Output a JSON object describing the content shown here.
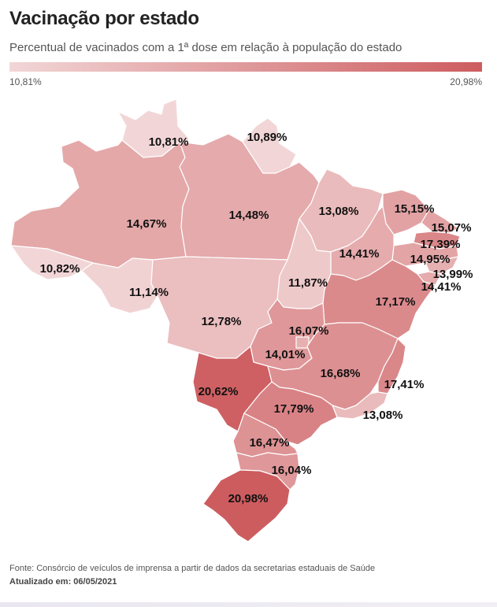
{
  "header": {
    "title": "Vacinação por estado",
    "subtitle": "Percentual de vacinados com a 1ª dose em relação à população do estado"
  },
  "legend": {
    "min_label": "10,81%",
    "max_label": "20,98%",
    "min_value": 10.81,
    "max_value": 20.98,
    "color_low": "#f2d6d7",
    "color_high": "#cd5c5f"
  },
  "map_data": {
    "type": "choropleth",
    "unit": "%",
    "regions": [
      {
        "id": "AM",
        "value": 14.67,
        "label": "14,67%"
      },
      {
        "id": "RR",
        "value": 10.81,
        "label": "10,81%"
      },
      {
        "id": "AP",
        "value": 10.89,
        "label": "10,89%"
      },
      {
        "id": "PA",
        "value": 14.48,
        "label": "14,48%"
      },
      {
        "id": "AC",
        "value": 10.82,
        "label": "10,82%"
      },
      {
        "id": "RO",
        "value": 11.14,
        "label": "11,14%"
      },
      {
        "id": "MA",
        "value": 13.08,
        "label": "13,08%"
      },
      {
        "id": "CE",
        "value": 15.15,
        "label": "15,15%"
      },
      {
        "id": "RN",
        "value": 15.07,
        "label": "15,07%"
      },
      {
        "id": "PB",
        "value": 17.39,
        "label": "17,39%"
      },
      {
        "id": "PE",
        "value": 14.95,
        "label": "14,95%"
      },
      {
        "id": "AL",
        "value": 13.99,
        "label": "13,99%"
      },
      {
        "id": "SE",
        "value": 14.41,
        "label": "14,41%"
      },
      {
        "id": "PI",
        "value": 14.41,
        "label": "14,41%"
      },
      {
        "id": "TO",
        "value": 11.87,
        "label": "11,87%"
      },
      {
        "id": "BA",
        "value": 17.17,
        "label": "17,17%"
      },
      {
        "id": "MT",
        "value": 12.78,
        "label": "12,78%"
      },
      {
        "id": "GO",
        "value": 16.07,
        "label": "16,07%"
      },
      {
        "id": "DF",
        "value": 14.01,
        "label": "14,01%"
      },
      {
        "id": "MG",
        "value": 16.68,
        "label": "16,68%"
      },
      {
        "id": "ES",
        "value": 17.41,
        "label": "17,41%"
      },
      {
        "id": "RJ",
        "value": 13.08,
        "label": "13,08%"
      },
      {
        "id": "MS",
        "value": 20.62,
        "label": "20,62%"
      },
      {
        "id": "SP",
        "value": 17.79,
        "label": "17,79%"
      },
      {
        "id": "PR",
        "value": 16.47,
        "label": "16,47%"
      },
      {
        "id": "SC",
        "value": 16.04,
        "label": "16,04%"
      },
      {
        "id": "RS",
        "value": 20.98,
        "label": "20,98%"
      }
    ]
  },
  "footer": {
    "source": "Fonte: Consórcio de veículos de imprensa a partir de dados da secretarias estaduais de Saúde",
    "updated": "Atualizado em: 06/05/2021"
  }
}
